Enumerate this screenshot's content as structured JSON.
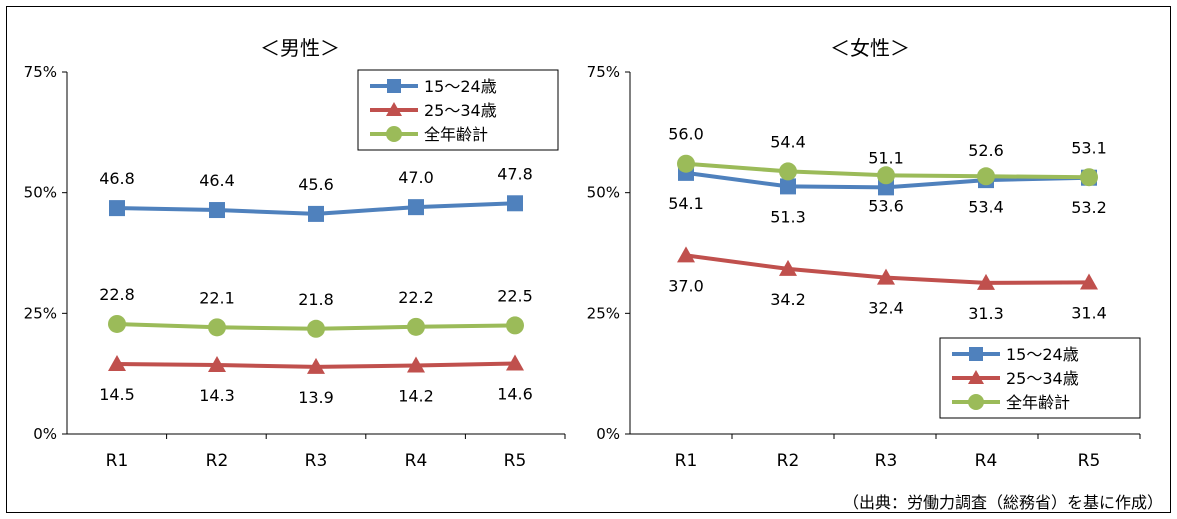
{
  "colors": {
    "s1": "#4f81bd",
    "s2": "#c0504d",
    "s3": "#9bbb59"
  },
  "source": "（出典：労働力調査（総務省）を基に作成）",
  "chart_data": [
    {
      "type": "line",
      "title": "＜男性＞",
      "categories": [
        "R1",
        "R2",
        "R3",
        "R4",
        "R5"
      ],
      "yticks": [
        "75%",
        "50%",
        "25%",
        "0%"
      ],
      "ylim": [
        0,
        75
      ],
      "legend_position": "top-right",
      "series": [
        {
          "name": "15～24歳",
          "values": [
            46.8,
            46.4,
            45.6,
            47.0,
            47.8
          ],
          "labels": [
            "46.8",
            "46.4",
            "45.6",
            "47.0",
            "47.8"
          ],
          "marker": "square",
          "color_key": "s1"
        },
        {
          "name": "25～34歳",
          "values": [
            14.5,
            14.3,
            13.9,
            14.2,
            14.6
          ],
          "labels": [
            "14.5",
            "14.3",
            "13.9",
            "14.2",
            "14.6"
          ],
          "marker": "triangle",
          "color_key": "s2"
        },
        {
          "name": "全年齢計",
          "values": [
            22.8,
            22.1,
            21.8,
            22.2,
            22.5
          ],
          "labels": [
            "22.8",
            "22.1",
            "21.8",
            "22.2",
            "22.5"
          ],
          "marker": "circle",
          "color_key": "s3"
        }
      ]
    },
    {
      "type": "line",
      "title": "＜女性＞",
      "categories": [
        "R1",
        "R2",
        "R3",
        "R4",
        "R5"
      ],
      "yticks": [
        "75%",
        "50%",
        "25%",
        "0%"
      ],
      "ylim": [
        0,
        75
      ],
      "legend_position": "bottom-right",
      "series": [
        {
          "name": "15～24歳",
          "values": [
            54.1,
            51.3,
            51.1,
            52.6,
            53.1
          ],
          "labels": [
            "54.1",
            "51.3",
            "51.1",
            "52.6",
            "53.1"
          ],
          "marker": "square",
          "color_key": "s1"
        },
        {
          "name": "25～34歳",
          "values": [
            37.0,
            34.2,
            32.4,
            31.3,
            31.4
          ],
          "labels": [
            "37.0",
            "34.2",
            "32.4",
            "31.3",
            "31.4"
          ],
          "marker": "triangle",
          "color_key": "s2"
        },
        {
          "name": "全年齢計",
          "values": [
            56.0,
            54.4,
            53.6,
            53.4,
            53.2
          ],
          "labels": [
            "56.0",
            "54.4",
            "53.6",
            "53.4",
            "53.2"
          ],
          "marker": "circle",
          "color_key": "s3"
        }
      ]
    }
  ]
}
